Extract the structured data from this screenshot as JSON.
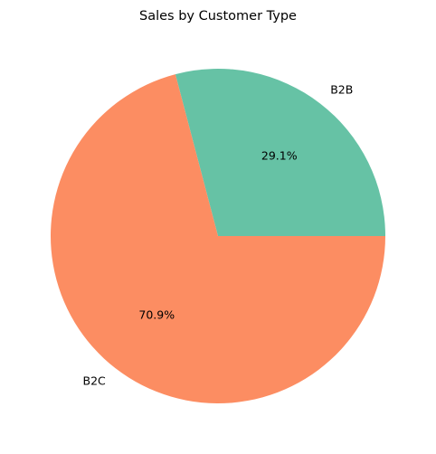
{
  "chart_data": {
    "type": "pie",
    "title": "Sales by Customer Type",
    "categories": [
      "B2B",
      "B2C"
    ],
    "values": [
      29.1,
      70.9
    ],
    "percent_labels": [
      "29.1%",
      "70.9%"
    ],
    "colors": [
      "#66c2a5",
      "#fc8d62"
    ],
    "start_angle_deg": 0,
    "direction": "counterclockwise"
  }
}
